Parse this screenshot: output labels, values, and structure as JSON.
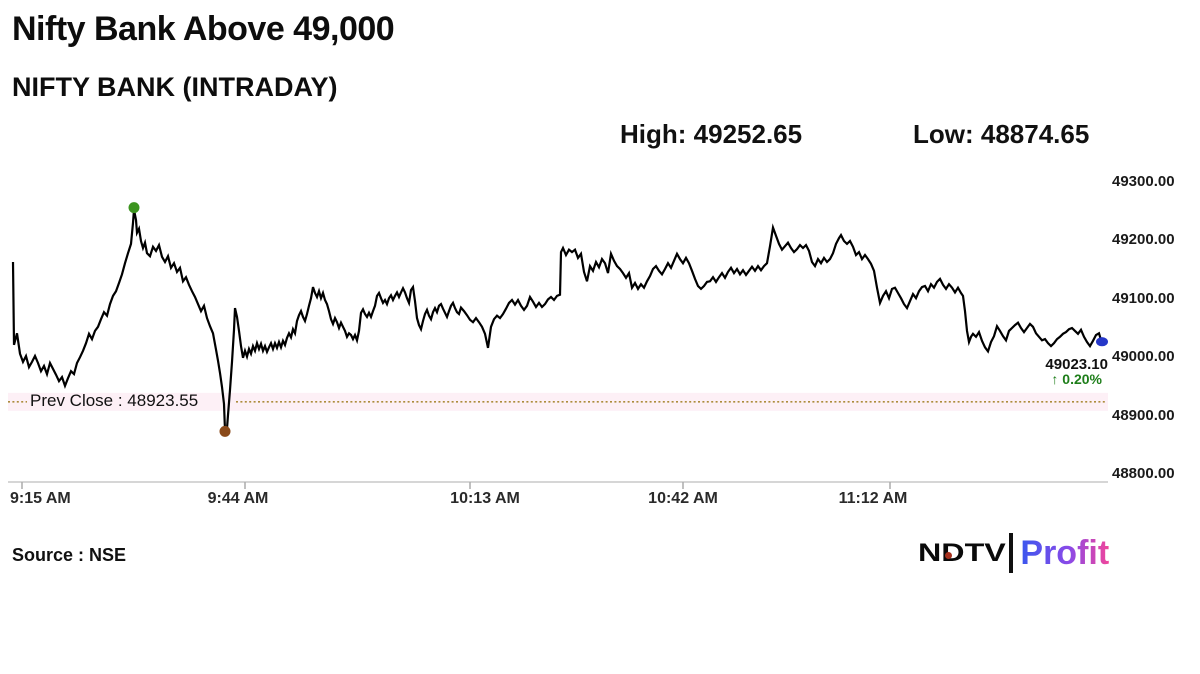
{
  "header": {
    "title": "Nifty Bank Above 49,000",
    "subtitle": "NIFTY BANK (INTRADAY)",
    "high_text": "High: 49252.65",
    "low_text": "Low: 48874.65"
  },
  "footer": {
    "source": "Source : NSE",
    "logo": {
      "ndtv": "NDTV",
      "profit": "Profit"
    }
  },
  "chart_data": {
    "type": "line",
    "title": "NIFTY BANK (INTRADAY)",
    "high": 49252.65,
    "low": 48874.65,
    "last": 49023.1,
    "prev_close": 48923.55,
    "change_pct": 0.2,
    "annotations": {
      "prev_close_text": "Prev Close : 48923.55",
      "last_price_text": "49023.10",
      "change_text": "↑ 0.20%"
    },
    "x_axis": {
      "labels": [
        "9:15 AM",
        "9:44 AM",
        "10:13 AM",
        "10:42 AM",
        "11:12 AM"
      ]
    },
    "y_axis": {
      "labels": [
        "49300.00",
        "49200.00",
        "49100.00",
        "49000.00",
        "48900.00",
        "48800.00"
      ],
      "min": 48800,
      "max": 49300,
      "tick_step": 100,
      "grid": false,
      "side": "right"
    },
    "colors": {
      "line": "#000000",
      "high_marker": "#3c941f",
      "low_marker": "#8a4a1a",
      "last_marker": "#2537c8",
      "prev_close_line": "#ad8c3c",
      "prev_close_band": "#fdf0f6",
      "change_green": "#1e7e1a"
    },
    "points": [
      [
        13,
        49163
      ],
      [
        14,
        49021
      ],
      [
        17,
        49041
      ],
      [
        20,
        49006
      ],
      [
        23,
        48992
      ],
      [
        26,
        49002
      ],
      [
        29,
        48983
      ],
      [
        32,
        48992
      ],
      [
        35,
        49002
      ],
      [
        38,
        48990
      ],
      [
        41,
        48976
      ],
      [
        44,
        48985
      ],
      [
        47,
        48971
      ],
      [
        50,
        48990
      ],
      [
        53,
        48980
      ],
      [
        56,
        48970
      ],
      [
        59,
        48959
      ],
      [
        62,
        48966
      ],
      [
        65,
        48951
      ],
      [
        68,
        48964
      ],
      [
        71,
        48976
      ],
      [
        74,
        48971
      ],
      [
        77,
        48990
      ],
      [
        80,
        49000
      ],
      [
        83,
        49011
      ],
      [
        86,
        49024
      ],
      [
        89,
        49040
      ],
      [
        92,
        49031
      ],
      [
        95,
        49045
      ],
      [
        98,
        49052
      ],
      [
        101,
        49065
      ],
      [
        104,
        49077
      ],
      [
        107,
        49071
      ],
      [
        110,
        49091
      ],
      [
        113,
        49105
      ],
      [
        116,
        49113
      ],
      [
        119,
        49127
      ],
      [
        122,
        49142
      ],
      [
        125,
        49161
      ],
      [
        128,
        49178
      ],
      [
        131,
        49194
      ],
      [
        133,
        49230
      ],
      [
        134,
        49252.65
      ],
      [
        136,
        49235
      ],
      [
        137,
        49213
      ],
      [
        139,
        49220
      ],
      [
        141,
        49199
      ],
      [
        143,
        49187
      ],
      [
        145,
        49196
      ],
      [
        147,
        49178
      ],
      [
        150,
        49173
      ],
      [
        153,
        49189
      ],
      [
        156,
        49182
      ],
      [
        159,
        49192
      ],
      [
        162,
        49172
      ],
      [
        165,
        49163
      ],
      [
        168,
        49173
      ],
      [
        171,
        49153
      ],
      [
        174,
        49161
      ],
      [
        177,
        49146
      ],
      [
        180,
        49153
      ],
      [
        183,
        49130
      ],
      [
        186,
        49137
      ],
      [
        189,
        49124
      ],
      [
        192,
        49113
      ],
      [
        195,
        49103
      ],
      [
        198,
        49091
      ],
      [
        201,
        49079
      ],
      [
        204,
        49088
      ],
      [
        207,
        49067
      ],
      [
        210,
        49053
      ],
      [
        213,
        49041
      ],
      [
        216,
        49013
      ],
      [
        218,
        48994
      ],
      [
        220,
        48973
      ],
      [
        222,
        48949
      ],
      [
        224,
        48920
      ],
      [
        225,
        48874.65
      ],
      [
        227,
        48878
      ],
      [
        228,
        48901
      ],
      [
        230,
        48944
      ],
      [
        232,
        48992
      ],
      [
        234,
        49047
      ],
      [
        235,
        49084
      ],
      [
        237,
        49069
      ],
      [
        239,
        49045
      ],
      [
        241,
        49019
      ],
      [
        243,
        48999
      ],
      [
        245,
        49011
      ],
      [
        247,
        49001
      ],
      [
        249,
        49014
      ],
      [
        251,
        49006
      ],
      [
        253,
        49019
      ],
      [
        255,
        49011
      ],
      [
        257,
        49024
      ],
      [
        259,
        49014
      ],
      [
        261,
        49023
      ],
      [
        263,
        49011
      ],
      [
        265,
        49019
      ],
      [
        267,
        49009
      ],
      [
        269,
        49017
      ],
      [
        271,
        49024
      ],
      [
        273,
        49014
      ],
      [
        275,
        49024
      ],
      [
        277,
        49016
      ],
      [
        279,
        49026
      ],
      [
        281,
        49017
      ],
      [
        283,
        49028
      ],
      [
        285,
        49021
      ],
      [
        287,
        49033
      ],
      [
        289,
        49041
      ],
      [
        291,
        49034
      ],
      [
        293,
        49048
      ],
      [
        295,
        49041
      ],
      [
        297,
        49062
      ],
      [
        299,
        49072
      ],
      [
        301,
        49079
      ],
      [
        303,
        49069
      ],
      [
        305,
        49062
      ],
      [
        307,
        49074
      ],
      [
        309,
        49088
      ],
      [
        311,
        49101
      ],
      [
        313,
        49120
      ],
      [
        315,
        49110
      ],
      [
        317,
        49103
      ],
      [
        319,
        49113
      ],
      [
        321,
        49101
      ],
      [
        323,
        49110
      ],
      [
        325,
        49098
      ],
      [
        327,
        49091
      ],
      [
        329,
        49079
      ],
      [
        331,
        49065
      ],
      [
        333,
        49057
      ],
      [
        335,
        49067
      ],
      [
        337,
        49060
      ],
      [
        339,
        49050
      ],
      [
        341,
        49059
      ],
      [
        343,
        49052
      ],
      [
        345,
        49045
      ],
      [
        347,
        49035
      ],
      [
        349,
        49041
      ],
      [
        351,
        49038
      ],
      [
        353,
        49031
      ],
      [
        355,
        49038
      ],
      [
        357,
        49029
      ],
      [
        359,
        49045
      ],
      [
        361,
        49076
      ],
      [
        363,
        49082
      ],
      [
        365,
        49074
      ],
      [
        367,
        49069
      ],
      [
        369,
        49076
      ],
      [
        371,
        49069
      ],
      [
        373,
        49079
      ],
      [
        375,
        49088
      ],
      [
        377,
        49105
      ],
      [
        379,
        49110
      ],
      [
        381,
        49101
      ],
      [
        383,
        49093
      ],
      [
        385,
        49098
      ],
      [
        387,
        49091
      ],
      [
        389,
        49101
      ],
      [
        391,
        49106
      ],
      [
        393,
        49098
      ],
      [
        395,
        49105
      ],
      [
        397,
        49111
      ],
      [
        399,
        49103
      ],
      [
        401,
        49111
      ],
      [
        403,
        49118
      ],
      [
        405,
        49111
      ],
      [
        407,
        49101
      ],
      [
        409,
        49093
      ],
      [
        411,
        49115
      ],
      [
        413,
        49120
      ],
      [
        415,
        49096
      ],
      [
        417,
        49067
      ],
      [
        419,
        49055
      ],
      [
        421,
        49048
      ],
      [
        423,
        49062
      ],
      [
        425,
        49074
      ],
      [
        427,
        49081
      ],
      [
        429,
        49071
      ],
      [
        431,
        49065
      ],
      [
        433,
        49077
      ],
      [
        435,
        49084
      ],
      [
        437,
        49077
      ],
      [
        439,
        49088
      ],
      [
        441,
        49091
      ],
      [
        443,
        49083
      ],
      [
        445,
        49076
      ],
      [
        447,
        49069
      ],
      [
        449,
        49079
      ],
      [
        451,
        49088
      ],
      [
        453,
        49093
      ],
      [
        455,
        49084
      ],
      [
        457,
        49077
      ],
      [
        459,
        49074
      ],
      [
        461,
        49085
      ],
      [
        464,
        49079
      ],
      [
        467,
        49072
      ],
      [
        470,
        49064
      ],
      [
        473,
        49060
      ],
      [
        476,
        49067
      ],
      [
        479,
        49060
      ],
      [
        482,
        49052
      ],
      [
        485,
        49040
      ],
      [
        488,
        49016
      ],
      [
        491,
        49052
      ],
      [
        494,
        49065
      ],
      [
        497,
        49071
      ],
      [
        500,
        49067
      ],
      [
        503,
        49074
      ],
      [
        506,
        49083
      ],
      [
        509,
        49093
      ],
      [
        512,
        49098
      ],
      [
        515,
        49090
      ],
      [
        518,
        49098
      ],
      [
        521,
        49088
      ],
      [
        524,
        49081
      ],
      [
        527,
        49088
      ],
      [
        530,
        49103
      ],
      [
        533,
        49095
      ],
      [
        536,
        49086
      ],
      [
        539,
        49093
      ],
      [
        542,
        49086
      ],
      [
        545,
        49091
      ],
      [
        548,
        49099
      ],
      [
        551,
        49103
      ],
      [
        554,
        49098
      ],
      [
        557,
        49105
      ],
      [
        560,
        49107
      ],
      [
        561,
        49180
      ],
      [
        563,
        49187
      ],
      [
        566,
        49175
      ],
      [
        569,
        49184
      ],
      [
        572,
        49180
      ],
      [
        575,
        49184
      ],
      [
        578,
        49170
      ],
      [
        581,
        49177
      ],
      [
        584,
        49146
      ],
      [
        587,
        49130
      ],
      [
        590,
        49156
      ],
      [
        593,
        49148
      ],
      [
        596,
        49163
      ],
      [
        599,
        49154
      ],
      [
        602,
        49168
      ],
      [
        605,
        49161
      ],
      [
        608,
        49144
      ],
      [
        611,
        49177
      ],
      [
        614,
        49165
      ],
      [
        617,
        49156
      ],
      [
        620,
        49151
      ],
      [
        623,
        49144
      ],
      [
        626,
        49136
      ],
      [
        629,
        49144
      ],
      [
        632,
        49119
      ],
      [
        635,
        49127
      ],
      [
        638,
        49117
      ],
      [
        641,
        49125
      ],
      [
        644,
        49119
      ],
      [
        647,
        49130
      ],
      [
        650,
        49139
      ],
      [
        653,
        49151
      ],
      [
        656,
        49156
      ],
      [
        659,
        49148
      ],
      [
        662,
        49142
      ],
      [
        665,
        49151
      ],
      [
        668,
        49161
      ],
      [
        671,
        49153
      ],
      [
        674,
        49165
      ],
      [
        677,
        49177
      ],
      [
        680,
        49168
      ],
      [
        683,
        49161
      ],
      [
        686,
        49170
      ],
      [
        689,
        49161
      ],
      [
        692,
        49148
      ],
      [
        695,
        49134
      ],
      [
        698,
        49122
      ],
      [
        701,
        49117
      ],
      [
        704,
        49122
      ],
      [
        707,
        49129
      ],
      [
        710,
        49130
      ],
      [
        713,
        49137
      ],
      [
        716,
        49129
      ],
      [
        719,
        49137
      ],
      [
        722,
        49144
      ],
      [
        725,
        49136
      ],
      [
        728,
        49146
      ],
      [
        731,
        49153
      ],
      [
        734,
        49144
      ],
      [
        737,
        49151
      ],
      [
        740,
        49142
      ],
      [
        743,
        49149
      ],
      [
        746,
        49141
      ],
      [
        749,
        49148
      ],
      [
        752,
        49155
      ],
      [
        755,
        49148
      ],
      [
        758,
        49156
      ],
      [
        761,
        49149
      ],
      [
        764,
        49156
      ],
      [
        767,
        49161
      ],
      [
        770,
        49190
      ],
      [
        773,
        49222
      ],
      [
        776,
        49208
      ],
      [
        779,
        49194
      ],
      [
        782,
        49184
      ],
      [
        785,
        49190
      ],
      [
        788,
        49196
      ],
      [
        791,
        49187
      ],
      [
        794,
        49180
      ],
      [
        797,
        49185
      ],
      [
        800,
        49192
      ],
      [
        803,
        49187
      ],
      [
        806,
        49192
      ],
      [
        809,
        49182
      ],
      [
        812,
        49163
      ],
      [
        815,
        49156
      ],
      [
        818,
        49168
      ],
      [
        821,
        49161
      ],
      [
        824,
        49170
      ],
      [
        827,
        49163
      ],
      [
        830,
        49168
      ],
      [
        833,
        49178
      ],
      [
        836,
        49194
      ],
      [
        839,
        49204
      ],
      [
        841,
        49209
      ],
      [
        844,
        49199
      ],
      [
        847,
        49194
      ],
      [
        850,
        49199
      ],
      [
        853,
        49189
      ],
      [
        856,
        49175
      ],
      [
        859,
        49180
      ],
      [
        862,
        49168
      ],
      [
        865,
        49175
      ],
      [
        868,
        49168
      ],
      [
        871,
        49160
      ],
      [
        874,
        49148
      ],
      [
        877,
        49119
      ],
      [
        880,
        49093
      ],
      [
        883,
        49105
      ],
      [
        886,
        49113
      ],
      [
        889,
        49101
      ],
      [
        892,
        49117
      ],
      [
        895,
        49119
      ],
      [
        898,
        49110
      ],
      [
        901,
        49101
      ],
      [
        904,
        49091
      ],
      [
        907,
        49084
      ],
      [
        910,
        49096
      ],
      [
        913,
        49108
      ],
      [
        916,
        49101
      ],
      [
        919,
        49113
      ],
      [
        922,
        49120
      ],
      [
        925,
        49122
      ],
      [
        928,
        49113
      ],
      [
        931,
        49125
      ],
      [
        934,
        49119
      ],
      [
        937,
        49129
      ],
      [
        940,
        49134
      ],
      [
        943,
        49124
      ],
      [
        946,
        49117
      ],
      [
        949,
        49125
      ],
      [
        952,
        49119
      ],
      [
        955,
        49111
      ],
      [
        958,
        49119
      ],
      [
        961,
        49110
      ],
      [
        963,
        49105
      ],
      [
        965,
        49079
      ],
      [
        967,
        49045
      ],
      [
        969,
        49026
      ],
      [
        971,
        49035
      ],
      [
        973,
        49040
      ],
      [
        976,
        49035
      ],
      [
        979,
        49043
      ],
      [
        982,
        49028
      ],
      [
        985,
        49017
      ],
      [
        988,
        49010
      ],
      [
        991,
        49026
      ],
      [
        994,
        49036
      ],
      [
        997,
        49053
      ],
      [
        1000,
        49045
      ],
      [
        1003,
        49036
      ],
      [
        1006,
        49029
      ],
      [
        1009,
        49045
      ],
      [
        1012,
        49050
      ],
      [
        1015,
        49055
      ],
      [
        1018,
        49059
      ],
      [
        1021,
        49050
      ],
      [
        1024,
        49043
      ],
      [
        1027,
        49050
      ],
      [
        1030,
        49057
      ],
      [
        1033,
        49052
      ],
      [
        1036,
        49041
      ],
      [
        1039,
        49035
      ],
      [
        1042,
        49029
      ],
      [
        1045,
        49031
      ],
      [
        1048,
        49024
      ],
      [
        1051,
        49019
      ],
      [
        1054,
        49024
      ],
      [
        1057,
        49031
      ],
      [
        1060,
        49035
      ],
      [
        1063,
        49040
      ],
      [
        1066,
        49043
      ],
      [
        1069,
        49048
      ],
      [
        1072,
        49050
      ],
      [
        1075,
        49045
      ],
      [
        1078,
        49040
      ],
      [
        1081,
        49047
      ],
      [
        1084,
        49035
      ],
      [
        1087,
        49026
      ],
      [
        1090,
        49019
      ],
      [
        1093,
        49028
      ],
      [
        1096,
        49038
      ],
      [
        1099,
        49041
      ],
      [
        1102,
        49023.1
      ]
    ]
  }
}
